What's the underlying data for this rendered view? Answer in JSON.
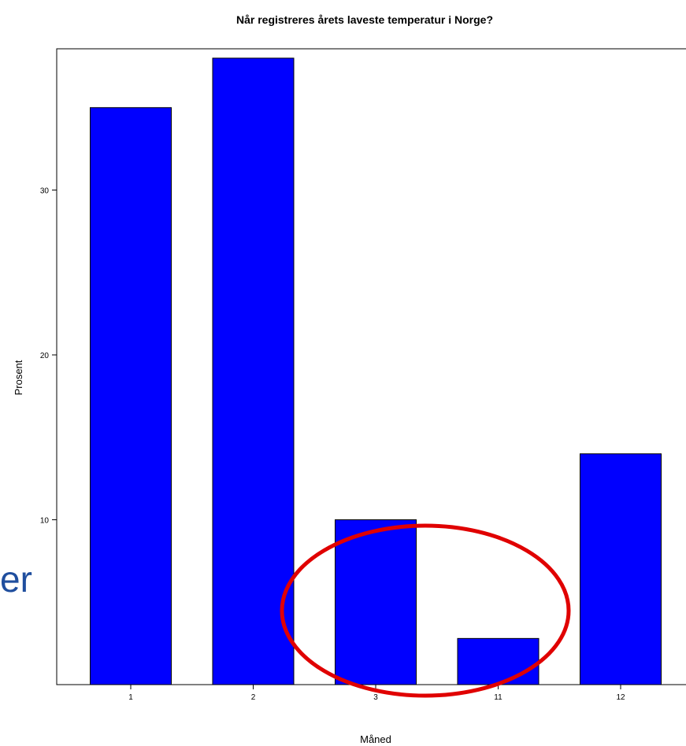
{
  "chart_data": {
    "type": "bar",
    "title": "Når registreres årets laveste temperatur i Norge?",
    "xlabel": "Måned",
    "ylabel": "Prosent",
    "categories": [
      "1",
      "2",
      "3",
      "11",
      "12"
    ],
    "values": [
      35,
      38,
      10,
      2.8,
      14
    ],
    "ylim": [
      0,
      39
    ],
    "yticks": [
      10,
      20,
      30
    ],
    "bar_color": "#0000ff",
    "grid": false,
    "annotation": {
      "shape": "ellipse",
      "color": "#e00000",
      "encloses_categories": [
        "3",
        "11"
      ]
    }
  },
  "overlay": {
    "partial_text": "er"
  }
}
